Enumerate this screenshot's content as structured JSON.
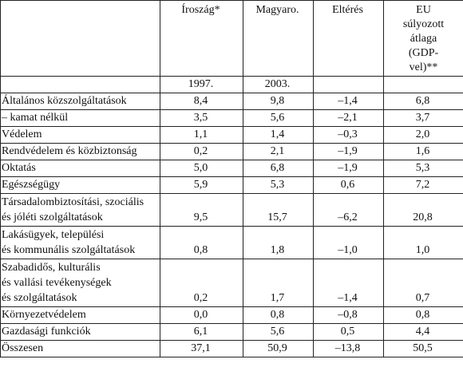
{
  "table": {
    "headers": [
      "Íroszág*",
      "Magyaro.",
      "Eltérés",
      "EU súlyozott átlaga (GDP-vel)**"
    ],
    "years": [
      "1997.",
      "2003."
    ],
    "rows": [
      {
        "label": "Általános közszolgáltatások",
        "v": [
          "8,4",
          "9,8",
          "–1,4",
          "6,8"
        ]
      },
      {
        "label": "– kamat nélkül",
        "v": [
          "3,5",
          "5,6",
          "–2,1",
          "3,7"
        ]
      },
      {
        "label": "Védelem",
        "v": [
          "1,1",
          "1,4",
          "–0,3",
          "2,0"
        ]
      },
      {
        "label": "Rendvédelem és közbiztonság",
        "v": [
          "0,2",
          "2,1",
          "–1,9",
          "1,6"
        ]
      },
      {
        "label": "Oktatás",
        "v": [
          "5,0",
          "6,8",
          "–1,9",
          "5,3"
        ]
      },
      {
        "label": "Egészségügy",
        "v": [
          "5,9",
          "5,3",
          "0,6",
          "7,2"
        ]
      },
      {
        "label": "Társadalombiztosítási, szociális\nés jóléti szolgáltatások",
        "v": [
          "9,5",
          "15,7",
          "–6,2",
          "20,8"
        ]
      },
      {
        "label": "Lakásügyek, települési\nés kommunális szolgáltatások",
        "v": [
          "0,8",
          "1,8",
          "–1,0",
          "1,0"
        ]
      },
      {
        "label": "Szabadidős, kulturális\nés vallási tevékenységek\nés szolgáltatások",
        "v": [
          "0,2",
          "1,7",
          "–1,4",
          "0,7"
        ]
      },
      {
        "label": "Környezetvédelem",
        "v": [
          "0,0",
          "0,8",
          "–0,8",
          "0,8"
        ]
      },
      {
        "label": "Gazdasági funkciók",
        "v": [
          "6,1",
          "5,6",
          "0,5",
          "4,4"
        ]
      },
      {
        "label": "Összesen",
        "v": [
          "37,1",
          "50,9",
          "–13,8",
          "50,5"
        ]
      }
    ]
  }
}
